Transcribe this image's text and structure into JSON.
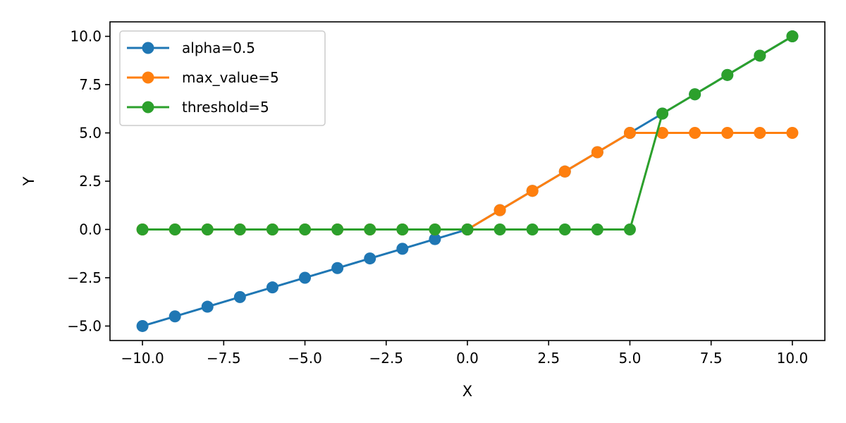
{
  "chart_data": {
    "type": "line",
    "xlabel": "X",
    "ylabel": "Y",
    "xlim": [
      -11,
      11
    ],
    "ylim": [
      -5.75,
      10.75
    ],
    "xticks": [
      -10.0,
      -7.5,
      -5.0,
      -2.5,
      0.0,
      2.5,
      5.0,
      7.5,
      10.0
    ],
    "xtick_labels": [
      "−10.0",
      "−7.5",
      "−5.0",
      "−2.5",
      "0.0",
      "2.5",
      "5.0",
      "7.5",
      "10.0"
    ],
    "yticks": [
      -5.0,
      -2.5,
      0.0,
      2.5,
      5.0,
      7.5,
      10.0
    ],
    "ytick_labels": [
      "−5.0",
      "−2.5",
      "0.0",
      "2.5",
      "5.0",
      "7.5",
      "10.0"
    ],
    "grid": false,
    "legend_position": "top-left",
    "x": [
      -10,
      -9,
      -8,
      -7,
      -6,
      -5,
      -4,
      -3,
      -2,
      -1,
      0,
      1,
      2,
      3,
      4,
      5,
      6,
      7,
      8,
      9,
      10
    ],
    "series": [
      {
        "name": "alpha=0.5",
        "color": "#1f77b4",
        "values": [
          -5,
          -4.5,
          -4,
          -3.5,
          -3,
          -2.5,
          -2,
          -1.5,
          -1,
          -0.5,
          0,
          1,
          2,
          3,
          4,
          5,
          6,
          7,
          8,
          9,
          10
        ]
      },
      {
        "name": "max_value=5",
        "color": "#ff7f0e",
        "values": [
          0,
          0,
          0,
          0,
          0,
          0,
          0,
          0,
          0,
          0,
          0,
          1,
          2,
          3,
          4,
          5,
          5,
          5,
          5,
          5,
          5
        ]
      },
      {
        "name": "threshold=5",
        "color": "#2ca02c",
        "values": [
          0,
          0,
          0,
          0,
          0,
          0,
          0,
          0,
          0,
          0,
          0,
          0,
          0,
          0,
          0,
          0,
          6,
          7,
          8,
          9,
          10
        ]
      }
    ]
  }
}
